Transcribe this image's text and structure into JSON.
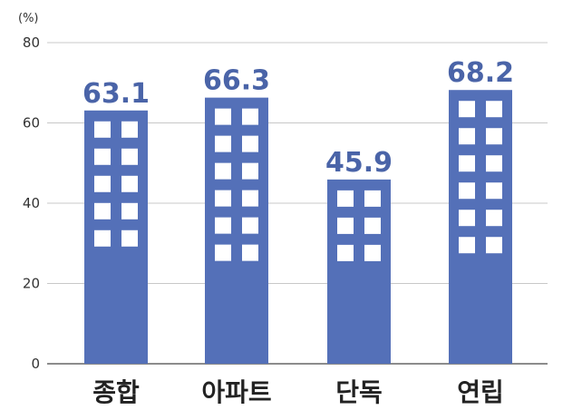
{
  "chart_data": {
    "type": "bar",
    "unit_label": "(%)",
    "categories": [
      "종합",
      "아파트",
      "단독",
      "연립"
    ],
    "values": [
      63.1,
      66.3,
      45.9,
      68.2
    ],
    "value_labels": [
      "63.1",
      "66.3",
      "45.9",
      "68.2"
    ],
    "ylim": [
      0,
      80
    ],
    "yticks": [
      "0",
      "20",
      "40",
      "60",
      "80"
    ],
    "ytick_values": [
      0,
      20,
      40,
      60,
      80
    ],
    "grid": true,
    "bar_color": "#5470b8",
    "label_color": "#4a64a8",
    "window_color": "#ffffff",
    "bar_style": "building icon with window grid"
  }
}
